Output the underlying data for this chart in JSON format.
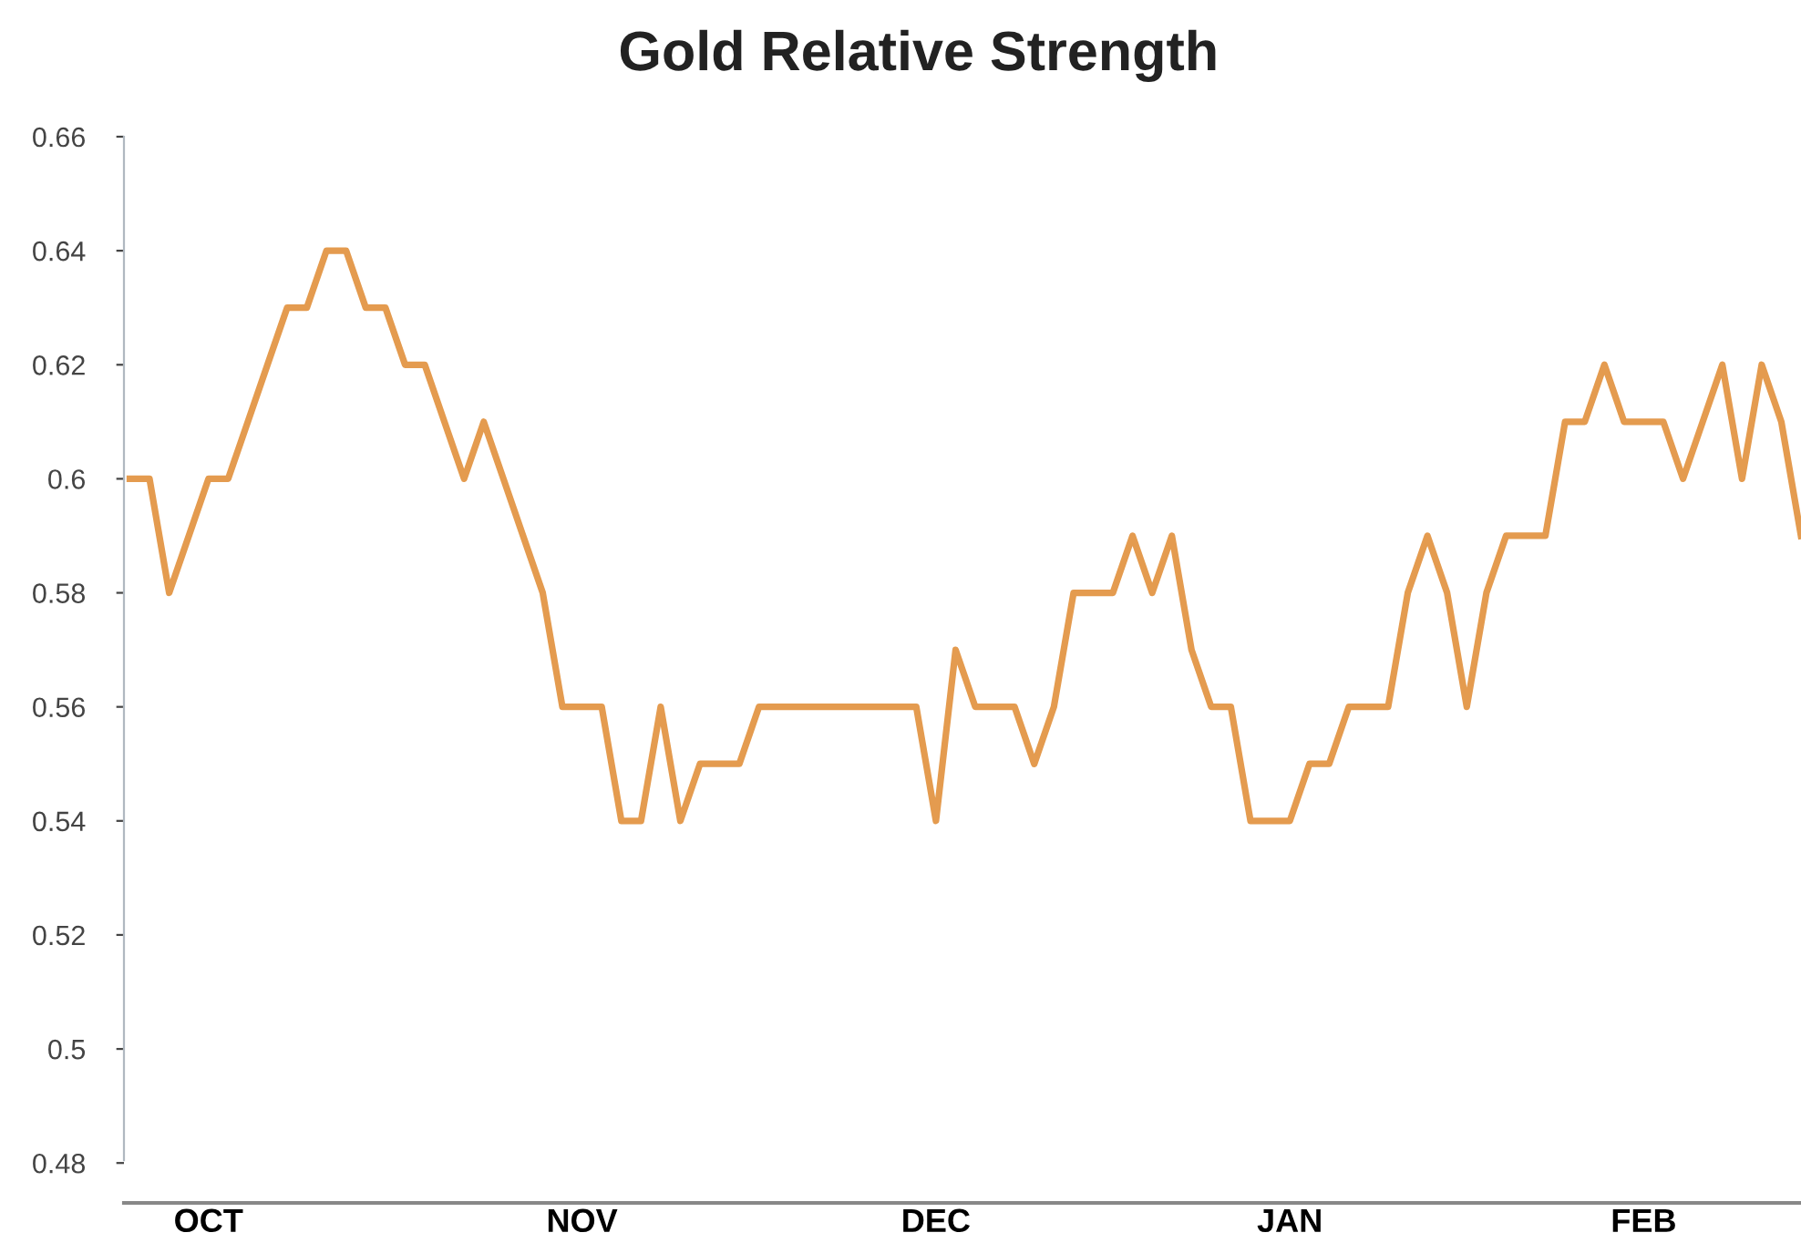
{
  "chart_data": {
    "type": "line",
    "title": "Gold Relative Strength",
    "categories": [
      null,
      null,
      null,
      null,
      "OCT",
      null,
      null,
      null,
      null,
      null,
      null,
      null,
      null,
      null,
      null,
      null,
      null,
      null,
      null,
      null,
      null,
      null,
      null,
      "NOV",
      null,
      null,
      null,
      null,
      null,
      null,
      null,
      null,
      null,
      null,
      null,
      null,
      null,
      null,
      null,
      null,
      null,
      "DEC",
      null,
      null,
      null,
      null,
      null,
      null,
      null,
      null,
      null,
      null,
      null,
      null,
      null,
      null,
      null,
      null,
      null,
      "JAN",
      null,
      null,
      null,
      null,
      null,
      null,
      null,
      null,
      null,
      null,
      null,
      null,
      null,
      null,
      null,
      null,
      null,
      "FEB",
      null,
      null,
      null,
      null,
      null,
      null,
      null,
      null
    ],
    "series": [
      {
        "color": "#e49b4f",
        "values": [
          0.6,
          0.6,
          0.58,
          0.59,
          0.6,
          0.6,
          0.61,
          0.62,
          0.63,
          0.63,
          0.64,
          0.64,
          0.63,
          0.63,
          0.62,
          0.62,
          0.61,
          0.6,
          0.61,
          0.6,
          0.59,
          0.58,
          0.56,
          0.56,
          0.56,
          0.54,
          0.54,
          0.56,
          0.54,
          0.55,
          0.55,
          0.55,
          0.56,
          0.56,
          0.56,
          0.56,
          0.56,
          0.56,
          0.56,
          0.56,
          0.56,
          0.54,
          0.57,
          0.56,
          0.56,
          0.56,
          0.55,
          0.56,
          0.58,
          0.58,
          0.58,
          0.59,
          0.58,
          0.59,
          0.57,
          0.56,
          0.56,
          0.54,
          0.54,
          0.54,
          0.55,
          0.55,
          0.56,
          0.56,
          0.56,
          0.58,
          0.59,
          0.58,
          0.56,
          0.58,
          0.59,
          0.59,
          0.59,
          0.61,
          0.61,
          0.62,
          0.61,
          0.61,
          0.61,
          0.6,
          0.61,
          0.62,
          0.6,
          0.62,
          0.61,
          0.59
        ]
      }
    ],
    "ylim": [
      0.473,
      0.66
    ],
    "yticks": [
      0.48,
      0.5,
      0.52,
      0.54,
      0.56,
      0.58,
      0.6,
      0.62,
      0.64,
      0.66
    ],
    "grid": false,
    "marker": "none",
    "line_style": "solid"
  }
}
